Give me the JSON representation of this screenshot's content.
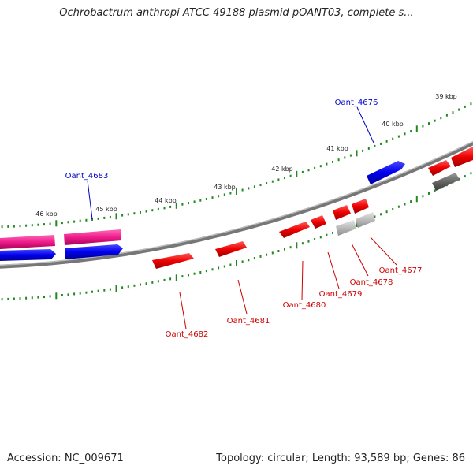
{
  "title": "Ochrobactrum anthropi ATCC 49188 plasmid pOANT03, complete s...",
  "footer": {
    "accession": "Accession: NC_009671",
    "summary": "Topology: circular; Length: 93,589 bp; Genes: 86"
  },
  "ticks": [
    {
      "label": "39 kbp"
    },
    {
      "label": "40 kbp"
    },
    {
      "label": "41 kbp"
    },
    {
      "label": "42 kbp"
    },
    {
      "label": "43 kbp"
    },
    {
      "label": "44 kbp"
    },
    {
      "label": "45 kbp"
    },
    {
      "label": "46 kbp"
    }
  ],
  "gene_labels": [
    {
      "name": "Oant_4676",
      "color": "#0000cc"
    },
    {
      "name": "Oant_4683",
      "color": "#0000cc"
    },
    {
      "name": "Oant_4677",
      "color": "#cc0000"
    },
    {
      "name": "Oant_4678",
      "color": "#cc0000"
    },
    {
      "name": "Oant_4679",
      "color": "#cc0000"
    },
    {
      "name": "Oant_4680",
      "color": "#cc0000"
    },
    {
      "name": "Oant_4681",
      "color": "#cc0000"
    },
    {
      "name": "Oant_4682",
      "color": "#cc0000"
    }
  ],
  "colors": {
    "forward_cds": "#0000ee",
    "reverse_cds": "#ee0000",
    "pink_feature": "#ee1c8a",
    "gray_feature": "#bbbbbb",
    "dark_gray_feature": "#666666",
    "backbone": "#777777",
    "tick": "#228822"
  }
}
